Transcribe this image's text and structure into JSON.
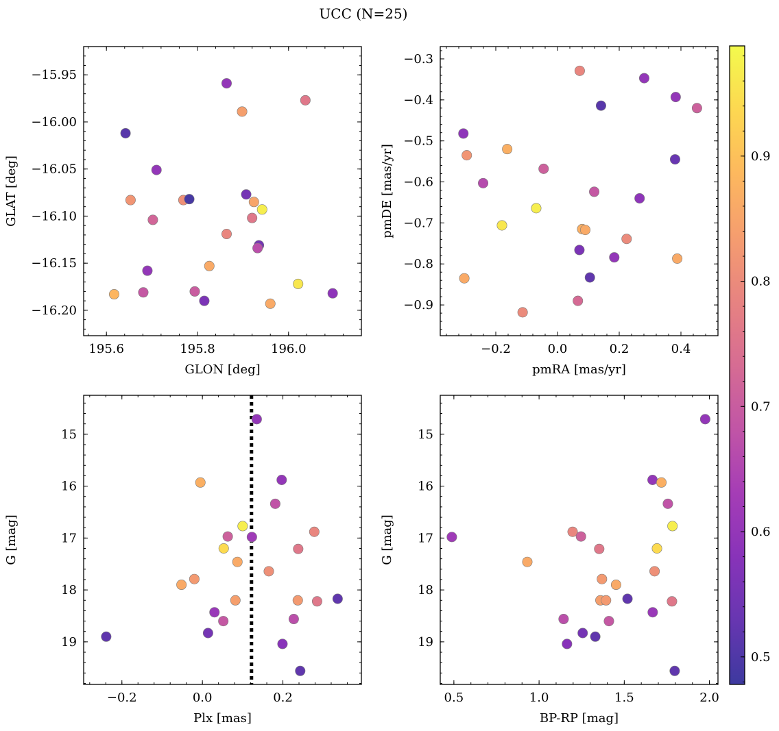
{
  "figure": {
    "title": "UCC (N=25)",
    "colormap": "plasma",
    "colorbar": {
      "vmin": 0.478,
      "vmax": 0.988,
      "ticks": [
        0.5,
        0.6,
        0.7,
        0.8,
        0.9
      ],
      "tick_labels": [
        "0.5",
        "0.6",
        "0.7",
        "0.8",
        "0.9"
      ]
    }
  },
  "chart_data": [
    {
      "type": "scatter",
      "title": "",
      "xlabel": "GLON [deg]",
      "ylabel": "GLAT [deg]",
      "xlim": [
        195.55,
        196.16
      ],
      "ylim": [
        -16.227,
        -15.92
      ],
      "xticks": [
        195.6,
        195.8,
        196.0
      ],
      "xtick_labels": [
        "195.6",
        "195.8",
        "196.0"
      ],
      "yticks": [
        -15.95,
        -16.0,
        -16.05,
        -16.1,
        -16.15,
        -16.2
      ],
      "ytick_labels": [
        "−15.95",
        "−16.00",
        "−16.05",
        "−16.10",
        "−16.15",
        "−16.20"
      ],
      "points": [
        {
          "x": 195.864,
          "y": -15.959,
          "c": 0.6
        },
        {
          "x": 196.037,
          "y": -15.977,
          "c": 0.76
        },
        {
          "x": 195.898,
          "y": -15.989,
          "c": 0.84
        },
        {
          "x": 195.642,
          "y": -16.012,
          "c": 0.51
        },
        {
          "x": 195.71,
          "y": -16.051,
          "c": 0.6
        },
        {
          "x": 195.907,
          "y": -16.077,
          "c": 0.55
        },
        {
          "x": 195.653,
          "y": -16.083,
          "c": 0.82
        },
        {
          "x": 195.769,
          "y": -16.083,
          "c": 0.81
        },
        {
          "x": 195.782,
          "y": -16.082,
          "c": 0.49
        },
        {
          "x": 195.942,
          "y": -16.093,
          "c": 0.97
        },
        {
          "x": 195.924,
          "y": -16.085,
          "c": 0.85
        },
        {
          "x": 195.92,
          "y": -16.102,
          "c": 0.76
        },
        {
          "x": 195.702,
          "y": -16.104,
          "c": 0.72
        },
        {
          "x": 195.864,
          "y": -16.119,
          "c": 0.79
        },
        {
          "x": 195.935,
          "y": -16.131,
          "c": 0.55
        },
        {
          "x": 195.932,
          "y": -16.134,
          "c": 0.67
        },
        {
          "x": 195.826,
          "y": -16.153,
          "c": 0.86
        },
        {
          "x": 195.69,
          "y": -16.158,
          "c": 0.6
        },
        {
          "x": 195.617,
          "y": -16.183,
          "c": 0.88
        },
        {
          "x": 195.681,
          "y": -16.181,
          "c": 0.69
        },
        {
          "x": 195.794,
          "y": -16.18,
          "c": 0.7
        },
        {
          "x": 195.815,
          "y": -16.19,
          "c": 0.56
        },
        {
          "x": 196.021,
          "y": -16.172,
          "c": 0.96
        },
        {
          "x": 196.097,
          "y": -16.182,
          "c": 0.59
        },
        {
          "x": 195.96,
          "y": -16.193,
          "c": 0.86
        }
      ]
    },
    {
      "type": "scatter",
      "title": "",
      "xlabel": "pmRA [mas/yr]",
      "ylabel": "pmDE [mas/yr]",
      "xlim": [
        -0.38,
        0.52
      ],
      "ylim": [
        -0.975,
        -0.27
      ],
      "xticks": [
        -0.2,
        0.0,
        0.2,
        0.4
      ],
      "xtick_labels": [
        "−0.2",
        "0.0",
        "0.2",
        "0.4"
      ],
      "yticks": [
        -0.3,
        -0.4,
        -0.5,
        -0.6,
        -0.7,
        -0.8,
        -0.9
      ],
      "ytick_labels": [
        "−0.3",
        "−0.4",
        "−0.5",
        "−0.6",
        "−0.7",
        "−0.8",
        "−0.9"
      ],
      "points": [
        {
          "x": 0.072,
          "y": -0.329,
          "c": 0.79
        },
        {
          "x": 0.281,
          "y": -0.347,
          "c": 0.6
        },
        {
          "x": 0.383,
          "y": -0.393,
          "c": 0.6
        },
        {
          "x": 0.452,
          "y": -0.42,
          "c": 0.71
        },
        {
          "x": 0.141,
          "y": -0.414,
          "c": 0.51
        },
        {
          "x": -0.305,
          "y": -0.482,
          "c": 0.59
        },
        {
          "x": -0.294,
          "y": -0.535,
          "c": 0.82
        },
        {
          "x": -0.163,
          "y": -0.52,
          "c": 0.87
        },
        {
          "x": 0.381,
          "y": -0.545,
          "c": 0.53
        },
        {
          "x": -0.045,
          "y": -0.568,
          "c": 0.71
        },
        {
          "x": -0.241,
          "y": -0.603,
          "c": 0.66
        },
        {
          "x": 0.119,
          "y": -0.624,
          "c": 0.69
        },
        {
          "x": 0.266,
          "y": -0.64,
          "c": 0.59
        },
        {
          "x": -0.069,
          "y": -0.664,
          "c": 0.97
        },
        {
          "x": -0.18,
          "y": -0.706,
          "c": 0.96
        },
        {
          "x": 0.08,
          "y": -0.715,
          "c": 0.87
        },
        {
          "x": 0.09,
          "y": -0.717,
          "c": 0.86
        },
        {
          "x": 0.224,
          "y": -0.739,
          "c": 0.8
        },
        {
          "x": 0.071,
          "y": -0.766,
          "c": 0.56
        },
        {
          "x": 0.184,
          "y": -0.784,
          "c": 0.6
        },
        {
          "x": 0.388,
          "y": -0.787,
          "c": 0.86
        },
        {
          "x": -0.302,
          "y": -0.835,
          "c": 0.86
        },
        {
          "x": 0.105,
          "y": -0.833,
          "c": 0.52
        },
        {
          "x": 0.066,
          "y": -0.89,
          "c": 0.73
        },
        {
          "x": -0.113,
          "y": -0.918,
          "c": 0.8
        }
      ]
    },
    {
      "type": "scatter",
      "title": "",
      "xlabel": "Plx [mas]",
      "ylabel": "G [mag]",
      "xlim": [
        -0.295,
        0.395
      ],
      "ylim": [
        19.82,
        14.25
      ],
      "y_inverted": true,
      "xticks": [
        -0.2,
        0.0,
        0.2
      ],
      "xtick_labels": [
        "−0.2",
        "0.0",
        "0.2"
      ],
      "yticks": [
        15,
        16,
        17,
        18,
        19
      ],
      "ytick_labels": [
        "15",
        "16",
        "17",
        "18",
        "19"
      ],
      "vline": {
        "x": 0.122,
        "style": "dotted"
      },
      "points": [
        {
          "x": 0.135,
          "y": 14.71,
          "c": 0.6
        },
        {
          "x": -0.005,
          "y": 15.93,
          "c": 0.87
        },
        {
          "x": 0.197,
          "y": 15.88,
          "c": 0.6
        },
        {
          "x": 0.181,
          "y": 16.34,
          "c": 0.68
        },
        {
          "x": 0.1,
          "y": 16.77,
          "c": 0.97
        },
        {
          "x": 0.063,
          "y": 16.97,
          "c": 0.71
        },
        {
          "x": 0.123,
          "y": 16.98,
          "c": 0.62
        },
        {
          "x": 0.278,
          "y": 16.88,
          "c": 0.79
        },
        {
          "x": 0.053,
          "y": 17.2,
          "c": 0.94
        },
        {
          "x": 0.238,
          "y": 17.21,
          "c": 0.76
        },
        {
          "x": 0.087,
          "y": 17.46,
          "c": 0.86
        },
        {
          "x": 0.165,
          "y": 17.64,
          "c": 0.81
        },
        {
          "x": -0.02,
          "y": 17.79,
          "c": 0.83
        },
        {
          "x": -0.052,
          "y": 17.9,
          "c": 0.86
        },
        {
          "x": 0.082,
          "y": 18.2,
          "c": 0.84
        },
        {
          "x": 0.237,
          "y": 18.2,
          "c": 0.83
        },
        {
          "x": 0.285,
          "y": 18.22,
          "c": 0.76
        },
        {
          "x": 0.336,
          "y": 18.17,
          "c": 0.52
        },
        {
          "x": 0.03,
          "y": 18.43,
          "c": 0.61
        },
        {
          "x": 0.052,
          "y": 18.6,
          "c": 0.69
        },
        {
          "x": 0.227,
          "y": 18.56,
          "c": 0.67
        },
        {
          "x": 0.014,
          "y": 18.83,
          "c": 0.55
        },
        {
          "x": 0.199,
          "y": 19.04,
          "c": 0.58
        },
        {
          "x": -0.239,
          "y": 18.9,
          "c": 0.52
        },
        {
          "x": 0.243,
          "y": 19.56,
          "c": 0.52
        }
      ]
    },
    {
      "type": "scatter",
      "title": "",
      "xlabel": "BP-RP [mag]",
      "ylabel": "G [mag]",
      "xlim": [
        0.42,
        2.05
      ],
      "ylim": [
        19.82,
        14.25
      ],
      "y_inverted": true,
      "xticks": [
        0.5,
        1.0,
        1.5,
        2.0
      ],
      "xtick_labels": [
        "0.5",
        "1.0",
        "1.5",
        "2.0"
      ],
      "yticks": [
        15,
        16,
        17,
        18,
        19
      ],
      "ytick_labels": [
        "15",
        "16",
        "17",
        "18",
        "19"
      ],
      "points": [
        {
          "x": 1.975,
          "y": 14.71,
          "c": 0.6
        },
        {
          "x": 1.666,
          "y": 15.88,
          "c": 0.6
        },
        {
          "x": 1.718,
          "y": 15.93,
          "c": 0.87
        },
        {
          "x": 1.756,
          "y": 16.34,
          "c": 0.68
        },
        {
          "x": 1.783,
          "y": 16.77,
          "c": 0.97
        },
        {
          "x": 0.488,
          "y": 16.98,
          "c": 0.62
        },
        {
          "x": 1.197,
          "y": 16.88,
          "c": 0.79
        },
        {
          "x": 1.246,
          "y": 16.97,
          "c": 0.71
        },
        {
          "x": 1.692,
          "y": 17.2,
          "c": 0.94
        },
        {
          "x": 1.353,
          "y": 17.21,
          "c": 0.76
        },
        {
          "x": 0.931,
          "y": 17.46,
          "c": 0.86
        },
        {
          "x": 1.678,
          "y": 17.64,
          "c": 0.81
        },
        {
          "x": 1.369,
          "y": 17.79,
          "c": 0.83
        },
        {
          "x": 1.452,
          "y": 17.9,
          "c": 0.86
        },
        {
          "x": 1.36,
          "y": 18.2,
          "c": 0.84
        },
        {
          "x": 1.393,
          "y": 18.2,
          "c": 0.83
        },
        {
          "x": 1.78,
          "y": 18.22,
          "c": 0.76
        },
        {
          "x": 1.519,
          "y": 18.17,
          "c": 0.52
        },
        {
          "x": 1.667,
          "y": 18.43,
          "c": 0.61
        },
        {
          "x": 1.144,
          "y": 18.56,
          "c": 0.67
        },
        {
          "x": 1.41,
          "y": 18.6,
          "c": 0.69
        },
        {
          "x": 1.256,
          "y": 18.83,
          "c": 0.55
        },
        {
          "x": 1.33,
          "y": 18.9,
          "c": 0.52
        },
        {
          "x": 1.164,
          "y": 19.04,
          "c": 0.58
        },
        {
          "x": 1.796,
          "y": 19.56,
          "c": 0.52
        }
      ]
    }
  ]
}
